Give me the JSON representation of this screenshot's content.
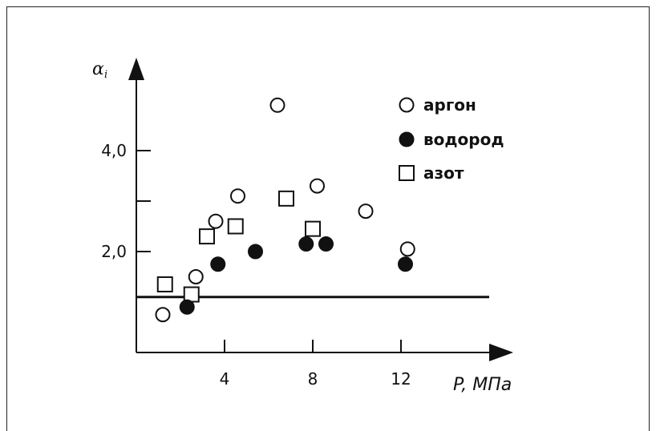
{
  "chart_data": {
    "type": "scatter",
    "title": "",
    "ylabel": "α",
    "ylabel_subscript": "i",
    "xlabel": "P, МПа",
    "xlim": [
      0,
      14.5
    ],
    "ylim": [
      0,
      5.5
    ],
    "x_ticks": [
      {
        "value": 4,
        "label": "4"
      },
      {
        "value": 8,
        "label": "8"
      },
      {
        "value": 12,
        "label": "12"
      }
    ],
    "y_ticks": [
      {
        "value": 2,
        "label": "2,0"
      },
      {
        "value": 3,
        "label": ""
      },
      {
        "value": 4,
        "label": "4,0"
      }
    ],
    "reference_line": {
      "y": 1.1,
      "x_range": [
        0,
        16
      ]
    },
    "grid": false,
    "legend_position": "top-right",
    "series": [
      {
        "name": "аргон",
        "marker": "open-circle",
        "points": [
          {
            "x": 1.2,
            "y": 0.75
          },
          {
            "x": 2.7,
            "y": 1.5
          },
          {
            "x": 3.6,
            "y": 2.6
          },
          {
            "x": 4.6,
            "y": 3.1
          },
          {
            "x": 6.4,
            "y": 4.9
          },
          {
            "x": 8.2,
            "y": 3.3
          },
          {
            "x": 10.4,
            "y": 2.8
          },
          {
            "x": 12.3,
            "y": 2.05
          }
        ]
      },
      {
        "name": "водород",
        "marker": "filled-circle",
        "points": [
          {
            "x": 2.3,
            "y": 0.9
          },
          {
            "x": 3.7,
            "y": 1.75
          },
          {
            "x": 5.4,
            "y": 2.0
          },
          {
            "x": 7.7,
            "y": 2.15
          },
          {
            "x": 8.6,
            "y": 2.15
          },
          {
            "x": 12.2,
            "y": 1.75
          }
        ]
      },
      {
        "name": "азот",
        "marker": "open-square",
        "points": [
          {
            "x": 1.3,
            "y": 1.35
          },
          {
            "x": 2.5,
            "y": 1.15
          },
          {
            "x": 3.2,
            "y": 2.3
          },
          {
            "x": 4.5,
            "y": 2.5
          },
          {
            "x": 6.8,
            "y": 3.05
          },
          {
            "x": 8.0,
            "y": 2.45
          }
        ]
      }
    ]
  }
}
